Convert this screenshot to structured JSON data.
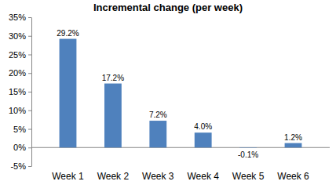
{
  "chart_data": {
    "type": "bar",
    "title": "Incremental change (per week)",
    "categories": [
      "Week 1",
      "Week 2",
      "Week 3",
      "Week 4",
      "Week 5",
      "Week 6"
    ],
    "values": [
      29.2,
      17.2,
      7.2,
      4.0,
      -0.1,
      1.2
    ],
    "value_labels": [
      "29.2%",
      "17.2%",
      "7.2%",
      "4.0%",
      "-0.1%",
      "1.2%"
    ],
    "color": "#4f81bd",
    "ylim": [
      -5,
      35
    ],
    "yticks": [
      {
        "value": -5,
        "label": "-5%"
      },
      {
        "value": 0,
        "label": "0%"
      },
      {
        "value": 5,
        "label": "5%"
      },
      {
        "value": 10,
        "label": "10%"
      },
      {
        "value": 15,
        "label": "15%"
      },
      {
        "value": 20,
        "label": "20%"
      },
      {
        "value": 25,
        "label": "25%"
      },
      {
        "value": 30,
        "label": "30%"
      },
      {
        "value": 35,
        "label": "35%"
      }
    ],
    "grid": false,
    "data_labels": true
  }
}
